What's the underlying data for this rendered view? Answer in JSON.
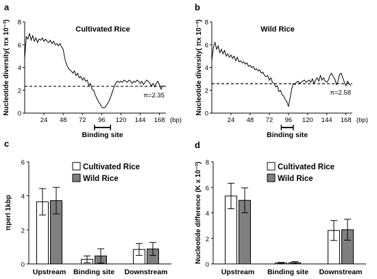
{
  "chart_data": [
    {
      "panel": "a",
      "type": "line",
      "title": "Cultivated Rice",
      "ylabel": "Nucleotide diversity( πx 10⁻³)",
      "x_unit": "(bp)",
      "x_ticks": [
        "24",
        "48",
        "72",
        "96",
        "120",
        "144",
        "168"
      ],
      "y_ticks": [
        "0",
        "2",
        "4",
        "6",
        "8"
      ],
      "xlim": [
        0,
        176
      ],
      "ylim": [
        0,
        8
      ],
      "mean_label": "π=2.35",
      "mean_value": 2.35,
      "bracket_label": "Binding site",
      "bracket_range": [
        87,
        107
      ],
      "x": [
        0,
        2,
        4,
        6,
        8,
        10,
        12,
        14,
        16,
        18,
        20,
        22,
        24,
        26,
        28,
        30,
        32,
        34,
        36,
        38,
        40,
        42,
        44,
        46,
        48,
        50,
        52,
        54,
        56,
        58,
        60,
        62,
        64,
        66,
        68,
        70,
        72,
        74,
        76,
        78,
        80,
        82,
        84,
        86,
        88,
        90,
        92,
        94,
        96,
        98,
        100,
        102,
        104,
        106,
        108,
        110,
        112,
        114,
        116,
        118,
        120,
        122,
        124,
        126,
        128,
        130,
        132,
        134,
        136,
        138,
        140,
        142,
        144,
        146,
        148,
        150,
        152,
        154,
        156,
        158,
        160,
        162,
        164,
        166,
        168,
        170,
        172,
        174
      ],
      "values": [
        4.8,
        6.7,
        6.5,
        7.0,
        6.4,
        6.8,
        6.3,
        6.6,
        6.2,
        6.5,
        6.4,
        6.6,
        6.3,
        6.5,
        6.3,
        6.2,
        6.4,
        6.1,
        6.3,
        6.0,
        6.1,
        5.9,
        6.1,
        5.8,
        5.6,
        4.8,
        4.3,
        4.0,
        3.8,
        3.7,
        3.5,
        3.7,
        3.3,
        3.5,
        3.1,
        3.2,
        2.9,
        3.1,
        2.8,
        2.9,
        2.4,
        2.6,
        2.1,
        2.0,
        1.6,
        1.3,
        1.0,
        0.8,
        0.55,
        0.45,
        0.5,
        0.7,
        0.9,
        1.2,
        1.6,
        2.0,
        2.4,
        2.7,
        2.8,
        2.7,
        2.8,
        2.7,
        2.9,
        2.8,
        2.7,
        2.9,
        2.8,
        2.6,
        2.8,
        2.7,
        2.9,
        2.8,
        2.6,
        2.8,
        2.5,
        2.7,
        2.9,
        2.8,
        2.6,
        2.4,
        2.6,
        2.3,
        2.6,
        2.8,
        2.5,
        2.1,
        2.4,
        2.3
      ]
    },
    {
      "panel": "b",
      "type": "line",
      "title": "Wild Rice",
      "ylabel": "Nucleotide diversity( πx 10⁻³)",
      "x_unit": "(bp)",
      "x_ticks": [
        "24",
        "48",
        "72",
        "96",
        "120",
        "144",
        "168"
      ],
      "y_ticks": [
        "0",
        "2",
        "4",
        "6",
        "8"
      ],
      "xlim": [
        0,
        176
      ],
      "ylim": [
        0,
        8
      ],
      "mean_label": "π=2.58",
      "mean_value": 2.58,
      "bracket_label": "Binding site",
      "bracket_range": [
        87,
        102
      ],
      "x": [
        0,
        2,
        4,
        6,
        8,
        10,
        12,
        14,
        16,
        18,
        20,
        22,
        24,
        26,
        28,
        30,
        32,
        34,
        36,
        38,
        40,
        42,
        44,
        46,
        48,
        50,
        52,
        54,
        56,
        58,
        60,
        62,
        64,
        66,
        68,
        70,
        72,
        74,
        76,
        78,
        80,
        82,
        84,
        86,
        88,
        90,
        92,
        94,
        96,
        98,
        100,
        102,
        104,
        106,
        108,
        110,
        112,
        114,
        116,
        118,
        120,
        122,
        124,
        126,
        128,
        130,
        132,
        134,
        136,
        138,
        140,
        142,
        144,
        146,
        148,
        150,
        152,
        154,
        156,
        158,
        160,
        162,
        164,
        166,
        168,
        170,
        172,
        174
      ],
      "values": [
        4.6,
        5.8,
        6.2,
        5.6,
        5.9,
        5.3,
        5.6,
        5.2,
        5.5,
        5.0,
        5.2,
        4.9,
        5.1,
        4.8,
        5.0,
        4.6,
        4.9,
        4.5,
        4.6,
        4.4,
        4.5,
        4.3,
        4.4,
        4.1,
        4.2,
        4.0,
        4.1,
        3.8,
        3.9,
        3.7,
        3.8,
        3.5,
        3.6,
        3.3,
        3.2,
        3.3,
        2.9,
        3.1,
        2.7,
        2.6,
        2.3,
        2.4,
        1.9,
        2.0,
        1.6,
        1.5,
        1.2,
        1.0,
        0.6,
        1.3,
        2.1,
        2.6,
        2.5,
        2.7,
        2.8,
        2.6,
        2.7,
        2.8,
        2.9,
        2.7,
        2.8,
        2.9,
        2.7,
        3.0,
        2.6,
        2.9,
        3.1,
        2.8,
        3.3,
        2.9,
        3.1,
        2.8,
        2.7,
        2.9,
        3.3,
        3.5,
        3.2,
        3.0,
        2.5,
        2.8,
        3.4,
        3.5,
        3.1,
        2.7,
        2.4,
        2.8,
        2.6,
        2.4
      ]
    },
    {
      "panel": "c",
      "type": "bar",
      "ylabel": "πperl 1kbp",
      "categories": [
        "Upstream",
        "Binding site",
        "Downstream"
      ],
      "y_ticks": [
        "0",
        "2",
        "4",
        "6"
      ],
      "ylim": [
        0,
        6
      ],
      "legend": "top-right",
      "series": [
        {
          "name": "Cultivated Rice",
          "color": "#ffffff",
          "values": [
            3.65,
            0.27,
            0.85
          ],
          "errors": [
            0.78,
            0.2,
            0.35
          ]
        },
        {
          "name": "Wild Rice",
          "color": "#7f7f7f",
          "values": [
            3.72,
            0.47,
            0.88
          ],
          "errors": [
            0.78,
            0.42,
            0.38
          ]
        }
      ]
    },
    {
      "panel": "d",
      "type": "bar",
      "ylabel": "Nucleotide difference (K x 10⁻³)",
      "categories": [
        "Upstream",
        "Binding site",
        "Downstream"
      ],
      "y_ticks": [
        "0",
        "2",
        "4",
        "6",
        "8"
      ],
      "ylim": [
        0,
        8
      ],
      "legend": "top-right",
      "series": [
        {
          "name": "Cultivated Rice",
          "color": "#ffffff",
          "values": [
            5.32,
            0.07,
            2.62
          ],
          "errors": [
            1.0,
            0.05,
            0.78
          ]
        },
        {
          "name": "Wild Rice",
          "color": "#7f7f7f",
          "values": [
            4.98,
            0.1,
            2.68
          ],
          "errors": [
            0.98,
            0.08,
            0.82
          ]
        }
      ]
    }
  ]
}
